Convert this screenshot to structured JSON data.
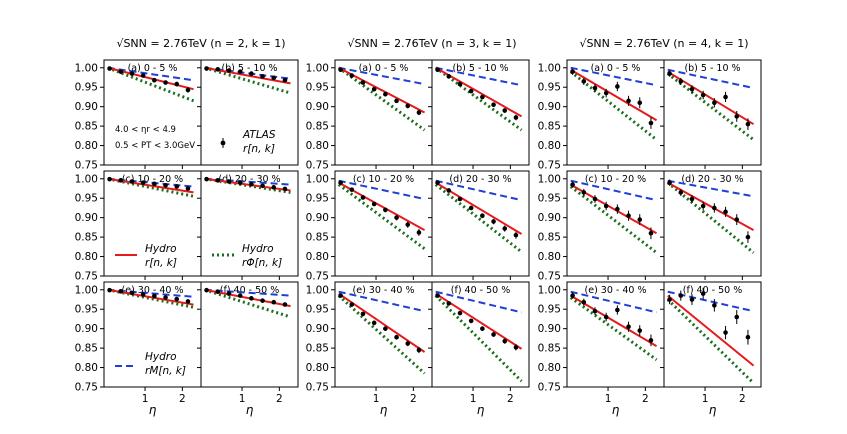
{
  "chart_data": {
    "type": "line",
    "xlabel": "η",
    "ylim": [
      0.75,
      1.02
    ],
    "xlim": [
      -0.1,
      2.5
    ],
    "yticks": [
      "0.75",
      "0.80",
      "0.85",
      "0.90",
      "0.95",
      "1.00"
    ],
    "xticks": [
      "1",
      "2"
    ],
    "centralities": [
      "(a) 0 - 5 %",
      "(b) 5 - 10 %",
      "(c) 10 - 20 %",
      "(d) 20 - 30 %",
      "(e) 30 - 40 %",
      "(f) 40 - 50 %"
    ],
    "notes": {
      "eta_range": "4.0 < ηr < 4.9",
      "pt_range": "0.5 < PT < 3.0GeV"
    },
    "legend": {
      "red_title": "Hydro",
      "red_sub": "r[n, k]",
      "green_title": "Hydro",
      "green_sub": "rΦ[n, k]",
      "blue_title": "Hydro",
      "blue_sub": "rM[n, k]",
      "atlas_title": "ATLAS",
      "atlas_sub": "r[n, k]"
    },
    "data_eta": [
      0.05,
      0.35,
      0.65,
      0.95,
      1.25,
      1.55,
      1.85,
      2.15
    ],
    "groups": [
      {
        "title": "√SNN = 2.76TeV (n = 2, k = 1)",
        "panels": [
          {
            "red": [
              1.0,
              0.945
            ],
            "green": [
              1.0,
              0.915
            ],
            "blue": [
              1.0,
              0.968
            ],
            "data": [
              0.998,
              0.99,
              0.985,
              0.98,
              0.968,
              0.962,
              0.958,
              0.943
            ],
            "err": [
              0.002,
              0.003,
              0.003,
              0.004,
              0.004,
              0.005,
              0.006,
              0.007
            ]
          },
          {
            "red": [
              1.0,
              0.96
            ],
            "green": [
              1.0,
              0.935
            ],
            "blue": [
              1.0,
              0.972
            ],
            "data": [
              0.998,
              0.996,
              0.993,
              0.99,
              0.985,
              0.978,
              0.974,
              0.968
            ],
            "err": [
              0.002,
              0.002,
              0.003,
              0.003,
              0.003,
              0.004,
              0.005,
              0.005
            ]
          },
          {
            "red": [
              1.0,
              0.965
            ],
            "green": [
              1.0,
              0.955
            ],
            "blue": [
              1.0,
              0.98
            ],
            "data": [
              0.999,
              0.996,
              0.993,
              0.99,
              0.987,
              0.983,
              0.98,
              0.975
            ],
            "err": [
              0.002,
              0.002,
              0.002,
              0.002,
              0.003,
              0.003,
              0.003,
              0.004
            ]
          },
          {
            "red": [
              1.0,
              0.97
            ],
            "green": [
              1.0,
              0.965
            ],
            "blue": [
              1.0,
              0.985
            ],
            "data": [
              0.999,
              0.996,
              0.993,
              0.99,
              0.986,
              0.982,
              0.978,
              0.974
            ],
            "err": [
              0.002,
              0.002,
              0.002,
              0.002,
              0.003,
              0.003,
              0.003,
              0.004
            ]
          },
          {
            "red": [
              1.0,
              0.962
            ],
            "green": [
              1.0,
              0.955
            ],
            "blue": [
              1.0,
              0.982
            ],
            "data": [
              0.999,
              0.996,
              0.992,
              0.988,
              0.984,
              0.98,
              0.976,
              0.97
            ],
            "err": [
              0.002,
              0.002,
              0.002,
              0.002,
              0.003,
              0.003,
              0.003,
              0.004
            ]
          },
          {
            "red": [
              1.0,
              0.958
            ],
            "green": [
              1.0,
              0.93
            ],
            "blue": [
              1.0,
              0.985
            ],
            "data": [
              0.999,
              0.995,
              0.99,
              0.985,
              0.978,
              0.972,
              0.968,
              0.962
            ],
            "err": [
              0.002,
              0.002,
              0.002,
              0.003,
              0.003,
              0.003,
              0.004,
              0.004
            ]
          }
        ]
      },
      {
        "title": "√SNN = 2.76TeV (n = 3, k = 1)",
        "panels": [
          {
            "red": [
              1.0,
              0.885
            ],
            "green": [
              1.0,
              0.84
            ],
            "blue": [
              1.0,
              0.958
            ],
            "data": [
              0.995,
              0.98,
              0.962,
              0.945,
              0.932,
              0.915,
              0.902,
              0.885
            ],
            "err": [
              0.002,
              0.003,
              0.003,
              0.004,
              0.004,
              0.005,
              0.006,
              0.007
            ]
          },
          {
            "red": [
              1.0,
              0.875
            ],
            "green": [
              1.0,
              0.84
            ],
            "blue": [
              1.0,
              0.955
            ],
            "data": [
              0.995,
              0.978,
              0.958,
              0.94,
              0.925,
              0.905,
              0.89,
              0.872
            ],
            "err": [
              0.002,
              0.003,
              0.003,
              0.004,
              0.004,
              0.005,
              0.006,
              0.007
            ]
          },
          {
            "red": [
              0.99,
              0.868
            ],
            "green": [
              0.985,
              0.82
            ],
            "blue": [
              0.995,
              0.948
            ],
            "data": [
              0.99,
              0.972,
              0.952,
              0.935,
              0.92,
              0.9,
              0.882,
              0.862
            ],
            "err": [
              0.003,
              0.004,
              0.004,
              0.005,
              0.006,
              0.007,
              0.008,
              0.009
            ]
          },
          {
            "red": [
              0.99,
              0.858
            ],
            "green": [
              0.985,
              0.812
            ],
            "blue": [
              0.995,
              0.945
            ],
            "data": [
              0.99,
              0.97,
              0.948,
              0.925,
              0.905,
              0.89,
              0.872,
              0.855
            ],
            "err": [
              0.003,
              0.004,
              0.004,
              0.005,
              0.006,
              0.007,
              0.008,
              0.009
            ]
          },
          {
            "red": [
              0.99,
              0.84
            ],
            "green": [
              0.985,
              0.785
            ],
            "blue": [
              0.995,
              0.945
            ],
            "data": [
              0.985,
              0.962,
              0.938,
              0.915,
              0.9,
              0.878,
              0.862,
              0.845
            ],
            "err": [
              0.003,
              0.004,
              0.005,
              0.005,
              0.006,
              0.006,
              0.007,
              0.008
            ]
          },
          {
            "red": [
              0.99,
              0.848
            ],
            "green": [
              0.985,
              0.765
            ],
            "blue": [
              0.995,
              0.942
            ],
            "data": [
              0.985,
              0.965,
              0.94,
              0.92,
              0.9,
              0.885,
              0.868,
              0.852
            ],
            "err": [
              0.003,
              0.004,
              0.005,
              0.005,
              0.006,
              0.006,
              0.007,
              0.008
            ]
          }
        ]
      },
      {
        "title": "√SNN = 2.76TeV (n = 4, k = 1)",
        "panels": [
          {
            "red": [
              0.995,
              0.865
            ],
            "green": [
              0.99,
              0.815
            ],
            "blue": [
              1.0,
              0.955
            ],
            "data": [
              0.99,
              0.965,
              0.948,
              0.935,
              0.952,
              0.915,
              0.91,
              0.858
            ],
            "err": [
              0.008,
              0.009,
              0.01,
              0.011,
              0.012,
              0.013,
              0.014,
              0.015
            ]
          },
          {
            "red": [
              0.99,
              0.855
            ],
            "green": [
              0.985,
              0.815
            ],
            "blue": [
              0.995,
              0.948
            ],
            "data": [
              0.985,
              0.965,
              0.945,
              0.93,
              0.91,
              0.925,
              0.875,
              0.855
            ],
            "err": [
              0.008,
              0.009,
              0.01,
              0.011,
              0.012,
              0.013,
              0.014,
              0.015
            ]
          },
          {
            "red": [
              0.985,
              0.86
            ],
            "green": [
              0.98,
              0.81
            ],
            "blue": [
              0.995,
              0.945
            ],
            "data": [
              0.985,
              0.965,
              0.948,
              0.93,
              0.922,
              0.905,
              0.895,
              0.86
            ],
            "err": [
              0.008,
              0.009,
              0.01,
              0.011,
              0.012,
              0.013,
              0.014,
              0.015
            ]
          },
          {
            "red": [
              0.99,
              0.868
            ],
            "green": [
              0.99,
              0.81
            ],
            "blue": [
              0.995,
              0.955
            ],
            "data": [
              0.99,
              0.965,
              0.948,
              0.93,
              0.925,
              0.915,
              0.895,
              0.85
            ],
            "err": [
              0.008,
              0.009,
              0.01,
              0.011,
              0.012,
              0.013,
              0.014,
              0.015
            ]
          },
          {
            "red": [
              0.985,
              0.855
            ],
            "green": [
              0.98,
              0.82
            ],
            "blue": [
              0.995,
              0.942
            ],
            "data": [
              0.985,
              0.968,
              0.945,
              0.93,
              0.948,
              0.905,
              0.895,
              0.87
            ],
            "err": [
              0.008,
              0.009,
              0.01,
              0.011,
              0.012,
              0.013,
              0.014,
              0.015
            ]
          },
          {
            "red": [
              0.985,
              0.805
            ],
            "green": [
              0.975,
              0.76
            ],
            "blue": [
              0.995,
              0.945
            ],
            "data": [
              0.975,
              0.985,
              0.975,
              0.99,
              0.96,
              0.89,
              0.93,
              0.878
            ],
            "err": [
              0.012,
              0.013,
              0.014,
              0.015,
              0.016,
              0.017,
              0.018,
              0.019
            ]
          }
        ]
      }
    ]
  }
}
